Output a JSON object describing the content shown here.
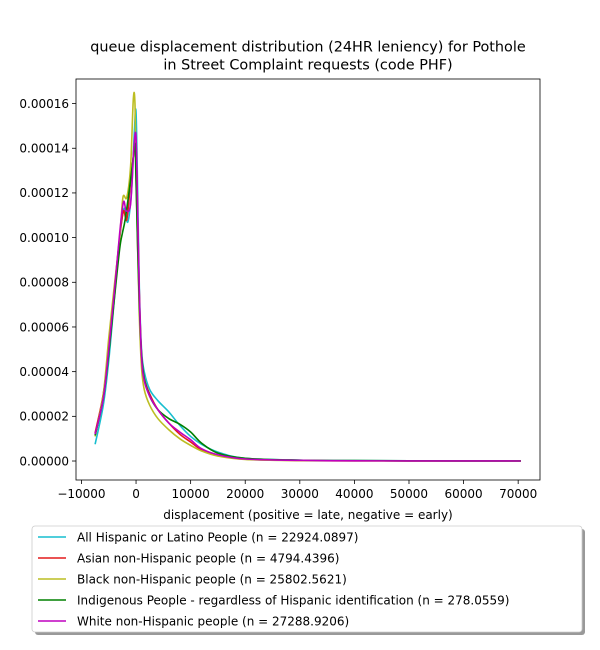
{
  "chart_data": {
    "type": "line",
    "title_lines": [
      "queue displacement distribution (24HR leniency) for Pothole",
      "in Street Complaint  requests (code PHF)"
    ],
    "xlabel": "displacement (positive = late, negative = early)",
    "ylabel": "",
    "xlim": [
      -11000,
      74000
    ],
    "ylim": [
      -8.5e-06,
      0.000171
    ],
    "xticks": [
      -10000,
      0,
      10000,
      20000,
      30000,
      40000,
      50000,
      60000,
      70000
    ],
    "xtick_labels": [
      "−10000",
      "0",
      "10000",
      "20000",
      "30000",
      "40000",
      "50000",
      "60000",
      "70000"
    ],
    "yticks": [
      0,
      2e-05,
      4e-05,
      6e-05,
      8e-05,
      0.0001,
      0.00012,
      0.00014,
      0.00016
    ],
    "ytick_labels": [
      "0.00000",
      "0.00002",
      "0.00004",
      "0.00006",
      "0.00008",
      "0.00010",
      "0.00012",
      "0.00014",
      "0.00016"
    ],
    "grid": false,
    "legend_position": "below",
    "series": [
      {
        "name": "All Hispanic or Latino People (n = 22924.0897)",
        "color": "#17becf",
        "x": [
          -7500,
          -6000,
          -5000,
          -4000,
          -3000,
          -2200,
          -1500,
          -800,
          -300,
          0,
          300,
          600,
          1000,
          1500,
          2500,
          4000,
          6000,
          8000,
          10000,
          12000,
          15000,
          20000,
          30000,
          40000,
          50000,
          60000,
          70500
        ],
        "y": [
          7.5e-06,
          2.5e-05,
          4.5e-05,
          7.2e-05,
          0.0001,
          0.000113,
          0.000107,
          0.000122,
          0.000148,
          0.000156,
          0.00012,
          7.8e-05,
          5e-05,
          4e-05,
          3.2e-05,
          2.7e-05,
          2.2e-05,
          1.6e-05,
          1.1e-05,
          7.5e-06,
          4e-06,
          1.2e-06,
          4e-07,
          2e-07,
          1e-07,
          5e-08,
          3e-08
        ]
      },
      {
        "name": "Asian non-Hispanic people (n = 4794.4396)",
        "color": "#e31a1c",
        "x": [
          -7500,
          -6000,
          -5000,
          -4000,
          -3000,
          -2300,
          -1700,
          -1000,
          -400,
          0,
          300,
          600,
          1000,
          1500,
          2500,
          4000,
          6000,
          8000,
          10000,
          12000,
          15000,
          20000,
          30000,
          40000,
          50000,
          60000,
          70500
        ],
        "y": [
          1.25e-05,
          3e-05,
          5e-05,
          7.6e-05,
          0.0001,
          0.000112,
          0.000108,
          0.000125,
          0.000138,
          0.000142,
          0.00011,
          7.5e-05,
          4.8e-05,
          3.7e-05,
          3e-05,
          2.3e-05,
          1.7e-05,
          1.2e-05,
          8.5e-06,
          5e-06,
          2.5e-06,
          8e-07,
          2e-07,
          1e-07,
          5e-08,
          3e-08,
          1e-08
        ]
      },
      {
        "name": "Black non-Hispanic people (n = 25802.5621)",
        "color": "#bcbd22",
        "x": [
          -7500,
          -6000,
          -5000,
          -4000,
          -3000,
          -2400,
          -1700,
          -1000,
          -500,
          -200,
          0,
          300,
          600,
          1000,
          1500,
          2500,
          4000,
          6000,
          8000,
          10000,
          12000,
          15000,
          20000,
          30000,
          40000,
          50000,
          60000,
          70500
        ],
        "y": [
          1.1e-05,
          3e-05,
          5.5e-05,
          7.8e-05,
          0.0001,
          0.000118,
          0.000118,
          0.000132,
          0.000162,
          0.00016,
          0.000128,
          9.5e-05,
          6.5e-05,
          4.2e-05,
          3.2e-05,
          2.5e-05,
          1.9e-05,
          1.4e-05,
          1e-05,
          7e-06,
          4.5e-06,
          2.2e-06,
          7e-07,
          2e-07,
          1e-07,
          5e-08,
          3e-08,
          1e-08
        ]
      },
      {
        "name": "Indigenous People - regardless of Hispanic identification (n = 278.0559)",
        "color": "#008000",
        "x": [
          -7500,
          -6000,
          -5000,
          -4000,
          -3000,
          -2500,
          -2000,
          -1200,
          -600,
          -200,
          0,
          300,
          600,
          1000,
          1500,
          2500,
          4000,
          6000,
          8000,
          10000,
          12000,
          15000,
          20000,
          30000,
          40000,
          50000,
          60000,
          70500
        ],
        "y": [
          1.15e-05,
          2.8e-05,
          4.8e-05,
          7.2e-05,
          9.5e-05,
          0.000102,
          0.000108,
          0.000122,
          0.000134,
          0.000142,
          0.000125,
          9.5e-05,
          7e-05,
          4.8e-05,
          3.7e-05,
          2.9e-05,
          2.3e-05,
          1.9e-05,
          1.65e-05,
          1.3e-05,
          8e-06,
          3.5e-06,
          1.2e-06,
          4e-07,
          2e-07,
          1e-07,
          5e-08,
          3e-08
        ]
      },
      {
        "name": "White non-Hispanic people (n = 27288.9206)",
        "color": "#bf00bf",
        "x": [
          -7500,
          -6000,
          -5000,
          -4000,
          -3000,
          -2300,
          -1800,
          -1000,
          -400,
          0,
          300,
          600,
          1000,
          1500,
          2500,
          4000,
          6000,
          8000,
          10000,
          12000,
          15000,
          20000,
          30000,
          40000,
          50000,
          60000,
          70500
        ],
        "y": [
          1.2e-05,
          2.8e-05,
          5e-05,
          7.5e-05,
          0.000102,
          0.000116,
          0.000112,
          0.000115,
          0.00014,
          0.000145,
          0.00011,
          7.5e-05,
          4.7e-05,
          3.6e-05,
          2.9e-05,
          2.3e-05,
          1.7e-05,
          1.3e-05,
          9.5e-06,
          5.5e-06,
          2.8e-06,
          9e-07,
          3e-07,
          1e-07,
          5e-08,
          3e-08,
          1e-08
        ]
      }
    ]
  }
}
